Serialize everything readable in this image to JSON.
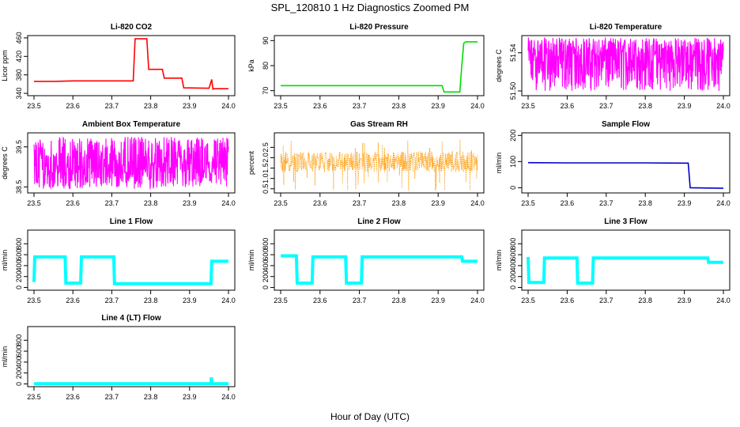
{
  "title": "SPL_120810  1 Hz Diagnostics Zoomed PM",
  "xlabel": "Hour of Day (UTC)",
  "chart_data": [
    {
      "type": "line",
      "title": "Li-820 CO2",
      "ylabel": "Licor ppm",
      "color": "#ff0000",
      "xlim": [
        23.5,
        24.0
      ],
      "ylim": [
        335,
        465
      ],
      "xticks": [
        "23.5",
        "23.6",
        "23.7",
        "23.8",
        "23.9",
        "24.0"
      ],
      "yticks": [
        "340",
        "380",
        "420",
        "460"
      ],
      "series": [
        {
          "x": [
            23.5,
            23.55,
            23.6,
            23.65,
            23.7,
            23.75,
            23.755,
            23.76,
            23.79,
            23.795,
            23.83,
            23.835,
            23.88,
            23.885,
            23.95,
            23.957,
            23.96,
            23.963,
            24.0
          ],
          "y": [
            366,
            366,
            367,
            367,
            367,
            367,
            367,
            458,
            458,
            392,
            392,
            373,
            373,
            352,
            351,
            370,
            349,
            350,
            350
          ]
        }
      ]
    },
    {
      "type": "line",
      "title": "Li-820 Pressure",
      "ylabel": "kPa",
      "color": "#00dd00",
      "xlim": [
        23.5,
        24.0
      ],
      "ylim": [
        68,
        92
      ],
      "xticks": [
        "23.5",
        "23.6",
        "23.7",
        "23.8",
        "23.9",
        "24.0"
      ],
      "yticks": [
        "70",
        "80",
        "90"
      ],
      "series": [
        {
          "x": [
            23.5,
            23.6,
            23.7,
            23.8,
            23.9,
            23.91,
            23.915,
            23.955,
            23.96,
            23.965,
            23.97,
            24.0
          ],
          "y": [
            72,
            72,
            72,
            72,
            72,
            72,
            69.5,
            69.5,
            80,
            89,
            89.5,
            89.5
          ]
        }
      ]
    },
    {
      "type": "line",
      "title": "Li-820 Temperature",
      "ylabel": "degrees C",
      "color": "#ff00ff",
      "xlim": [
        23.5,
        24.0
      ],
      "ylim": [
        51.495,
        51.558
      ],
      "xticks": [
        "23.5",
        "23.6",
        "23.7",
        "23.8",
        "23.9",
        "24.0"
      ],
      "yticks": [
        "51.50",
        "51.54"
      ],
      "series": [
        {
          "x": [
            23.5,
            24.0
          ],
          "y": [
            51.536,
            51.536
          ],
          "note_band": [
            51.5,
            51.556
          ]
        }
      ]
    },
    {
      "type": "line",
      "title": "Ambient Box Temperature",
      "ylabel": "degrees C",
      "color": "#ff00ff",
      "xlim": [
        23.5,
        24.0
      ],
      "ylim": [
        38.35,
        39.85
      ],
      "xticks": [
        "23.5",
        "23.6",
        "23.7",
        "23.8",
        "23.9",
        "24.0"
      ],
      "yticks": [
        "38.5",
        "39.5"
      ],
      "series": [
        {
          "x": [
            23.5,
            24.0
          ],
          "y": [
            39.0,
            39.0
          ],
          "note_band": [
            38.45,
            39.75
          ]
        }
      ]
    },
    {
      "type": "scatter",
      "title": "Gas Stream RH",
      "ylabel": "percent",
      "color": "#ff9900",
      "xlim": [
        23.5,
        24.0
      ],
      "ylim": [
        0.3,
        3.2
      ],
      "xticks": [
        "23.5",
        "23.6",
        "23.7",
        "23.8",
        "23.9",
        "24.0"
      ],
      "yticks": [
        "0.5",
        "1.0",
        "1.5",
        "2.0",
        "2.5"
      ],
      "series": [
        {
          "x": [
            23.5,
            24.0
          ],
          "y": [
            1.8,
            1.8
          ],
          "note_band": [
            1.2,
            2.3
          ]
        }
      ]
    },
    {
      "type": "line",
      "title": "Sample Flow",
      "ylabel": "ml/min",
      "color": "#0000cc",
      "xlim": [
        23.5,
        24.0
      ],
      "ylim": [
        -20,
        210
      ],
      "xticks": [
        "23.5",
        "23.6",
        "23.7",
        "23.8",
        "23.9",
        "24.0"
      ],
      "yticks": [
        "0",
        "100",
        "200"
      ],
      "series": [
        {
          "x": [
            23.5,
            23.6,
            23.7,
            23.8,
            23.9,
            23.91,
            23.915,
            24.0
          ],
          "y": [
            96,
            95,
            95,
            95,
            94,
            94,
            0,
            -2
          ]
        }
      ]
    },
    {
      "type": "line",
      "title": "Line 1 Flow",
      "ylabel": "ml/min",
      "color": "#00ffff",
      "xlim": [
        23.5,
        24.0
      ],
      "ylim": [
        -50,
        1050
      ],
      "xticks": [
        "23.5",
        "23.6",
        "23.7",
        "23.8",
        "23.9",
        "24.0"
      ],
      "yticks": [
        "0",
        "200",
        "400",
        "600",
        "800"
      ],
      "series": [
        {
          "x": [
            23.5,
            23.502,
            23.58,
            23.582,
            23.62,
            23.622,
            23.705,
            23.707,
            23.955,
            23.957,
            24.0
          ],
          "y": [
            100,
            560,
            560,
            80,
            80,
            560,
            560,
            70,
            70,
            480,
            480
          ]
        }
      ]
    },
    {
      "type": "line",
      "title": "Line 2 Flow",
      "ylabel": "ml/min",
      "color": "#00ffff",
      "xlim": [
        23.5,
        24.0
      ],
      "ylim": [
        -50,
        1050
      ],
      "xticks": [
        "23.5",
        "23.6",
        "23.7",
        "23.8",
        "23.9",
        "24.0"
      ],
      "yticks": [
        "0",
        "200",
        "400",
        "600",
        "800"
      ],
      "series": [
        {
          "x": [
            23.5,
            23.54,
            23.542,
            23.58,
            23.582,
            23.665,
            23.667,
            23.705,
            23.707,
            23.96,
            23.962,
            24.0
          ],
          "y": [
            580,
            580,
            80,
            80,
            560,
            560,
            80,
            80,
            560,
            560,
            480,
            480
          ]
        }
      ]
    },
    {
      "type": "line",
      "title": "Line 3 Flow",
      "ylabel": "ml/min",
      "color": "#00ffff",
      "xlim": [
        23.5,
        24.0
      ],
      "ylim": [
        -50,
        1050
      ],
      "xticks": [
        "23.5",
        "23.6",
        "23.7",
        "23.8",
        "23.9",
        "24.0"
      ],
      "yticks": [
        "0",
        "200",
        "400",
        "600",
        "800"
      ],
      "series": [
        {
          "x": [
            23.5,
            23.502,
            23.54,
            23.542,
            23.625,
            23.627,
            23.665,
            23.667,
            23.96,
            23.962,
            24.0
          ],
          "y": [
            560,
            90,
            90,
            540,
            540,
            80,
            80,
            540,
            540,
            460,
            460
          ]
        }
      ]
    },
    {
      "type": "line",
      "title": "Line 4 (LT) Flow",
      "ylabel": "ml/min",
      "color": "#00ffff",
      "xlim": [
        23.5,
        24.0
      ],
      "ylim": [
        -50,
        1050
      ],
      "xticks": [
        "23.5",
        "23.6",
        "23.7",
        "23.8",
        "23.9",
        "24.0"
      ],
      "yticks": [
        "0",
        "200",
        "400",
        "600",
        "800"
      ],
      "series": [
        {
          "x": [
            23.5,
            23.955,
            23.956,
            23.957,
            23.958,
            24.0
          ],
          "y": [
            5,
            5,
            120,
            5,
            5,
            5
          ]
        }
      ]
    }
  ]
}
